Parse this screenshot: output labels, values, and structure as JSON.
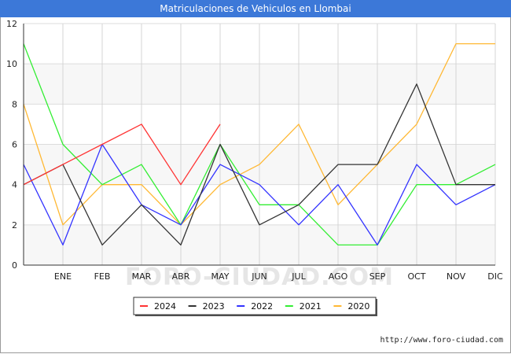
{
  "chart_data": {
    "type": "line",
    "title": "Matriculaciones de Vehiculos en Llombai",
    "categories": [
      "",
      "ENE",
      "FEB",
      "MAR",
      "ABR",
      "MAY",
      "JUN",
      "JUL",
      "AGO",
      "SEP",
      "OCT",
      "NOV",
      "DIC"
    ],
    "ylim": [
      0,
      12
    ],
    "yticks": [
      0,
      2,
      4,
      6,
      8,
      10,
      12
    ],
    "grid": true,
    "legend_position": "bottom",
    "series": [
      {
        "name": "2024",
        "color": "#ff3333",
        "values": [
          4,
          5,
          6,
          7,
          4,
          7,
          null,
          null,
          null,
          null,
          null,
          null,
          null
        ]
      },
      {
        "name": "2023",
        "color": "#333333",
        "values": [
          4,
          5,
          1,
          3,
          1,
          6,
          2,
          3,
          5,
          5,
          9,
          4,
          4
        ]
      },
      {
        "name": "2022",
        "color": "#3333ff",
        "values": [
          5,
          1,
          6,
          3,
          2,
          5,
          4,
          2,
          4,
          1,
          5,
          3,
          4
        ]
      },
      {
        "name": "2021",
        "color": "#33ee33",
        "values": [
          11,
          6,
          4,
          5,
          2,
          6,
          3,
          3,
          1,
          1,
          4,
          4,
          5
        ]
      },
      {
        "name": "2020",
        "color": "#ffb833",
        "values": [
          8,
          2,
          4,
          4,
          2,
          4,
          5,
          7,
          3,
          5,
          7,
          11,
          11
        ]
      }
    ]
  },
  "watermark": "FORO-CIUDAD.COM",
  "credit": "http://www.foro-ciudad.com"
}
